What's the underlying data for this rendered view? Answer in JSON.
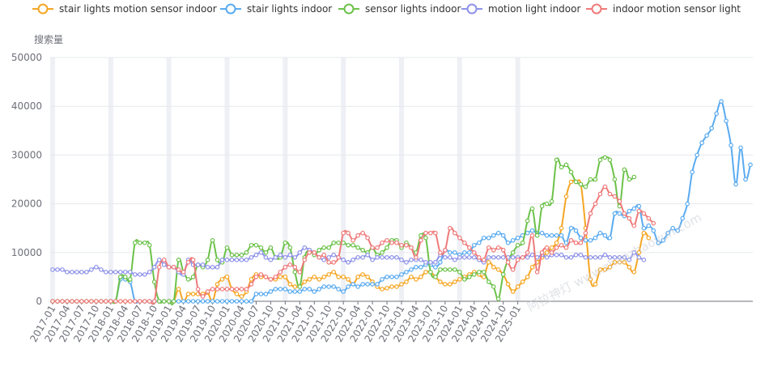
{
  "chart_data": {
    "type": "line",
    "title": "",
    "ylabel": "搜索量",
    "xlabel": "",
    "ylim": [
      0,
      50000
    ],
    "y_ticks": [
      "0",
      "10000",
      "20000",
      "30000",
      "40000",
      "50000"
    ],
    "x_start": "2017-01",
    "x_tick_labels": [
      "2017-01",
      "2017-04",
      "2017-07",
      "2017-10",
      "2018-01",
      "2018-04",
      "2018-07",
      "2018-10",
      "2019-01",
      "2019-04",
      "2019-07",
      "2019-10",
      "2020-01",
      "2020-04",
      "2020-07",
      "2020-10",
      "2021-01",
      "2021-04",
      "2021-07",
      "2021-10",
      "2022-01",
      "2022-04",
      "2022-07",
      "2022-10",
      "2023-01",
      "2023-04",
      "2023-07",
      "2023-10",
      "2024-01",
      "2024-04",
      "2024-07",
      "2024-10",
      "2025-01"
    ],
    "legend_position": "top",
    "grid": true,
    "highlight_months": [
      "2017-01",
      "2018-01",
      "2019-01",
      "2020-01",
      "2021-01",
      "2022-01",
      "2023-01",
      "2024-01",
      "2025-01"
    ],
    "watermark": "阿拉神灯 www.zhaozhaoyun.com",
    "series": [
      {
        "name": "stair lights motion sensor indoor",
        "color": "#f5a623",
        "values": [
          0,
          0,
          0,
          0,
          0,
          0,
          0,
          0,
          0,
          0,
          0,
          0,
          0,
          0,
          0,
          0,
          0,
          0,
          0,
          0,
          0,
          0,
          0,
          0,
          0,
          0,
          2500,
          0,
          1500,
          1500,
          1500,
          1500,
          1800,
          0,
          3500,
          4500,
          5000,
          2500,
          1500,
          1000,
          2000,
          4500,
          5500,
          5000,
          5000,
          4500,
          4500,
          5000,
          5000,
          3500,
          3000,
          3000,
          4000,
          4500,
          5000,
          4500,
          5000,
          5500,
          6000,
          5000,
          5000,
          4500,
          3500,
          5000,
          5500,
          5000,
          4000,
          3000,
          2500,
          2700,
          3000,
          3000,
          3500,
          4000,
          5000,
          4500,
          5000,
          6000,
          6000,
          5000,
          4000,
          3500,
          3500,
          4000,
          4500,
          5000,
          5500,
          6000,
          5500,
          5000,
          8000,
          7000,
          6500,
          5500,
          3500,
          2000,
          3000,
          4000,
          5000,
          7000,
          8000,
          9000,
          10000,
          11000,
          12000,
          15000,
          21500,
          24500,
          24500,
          24000,
          15000,
          4500,
          3500,
          6500,
          6500,
          7000,
          8000,
          8000,
          8000,
          7000,
          6000,
          10000,
          14000,
          13000
        ]
      },
      {
        "name": "stair lights indoor",
        "color": "#5aabf0",
        "values": [
          0,
          0,
          0,
          0,
          0,
          0,
          0,
          0,
          0,
          0,
          0,
          0,
          0,
          0,
          4500,
          4500,
          4000,
          0,
          0,
          0,
          0,
          0,
          0,
          0,
          0,
          0,
          0,
          0,
          0,
          0,
          0,
          0,
          0,
          0,
          0,
          0,
          0,
          0,
          0,
          0,
          0,
          0,
          1500,
          1500,
          1500,
          2000,
          2500,
          2500,
          2500,
          2000,
          2000,
          2000,
          2500,
          2500,
          2000,
          2500,
          3000,
          3000,
          3000,
          2500,
          2000,
          3000,
          3500,
          3000,
          3500,
          3500,
          3500,
          3500,
          4500,
          5000,
          5000,
          5000,
          5500,
          6000,
          6500,
          7000,
          7000,
          7500,
          7500,
          7000,
          8000,
          10500,
          10000,
          10000,
          9500,
          10000,
          10000,
          11500,
          12000,
          13000,
          13000,
          13500,
          14000,
          13500,
          12000,
          12500,
          13000,
          13500,
          14000,
          14500,
          14000,
          14000,
          13500,
          13500,
          13500,
          13500,
          12000,
          15000,
          14500,
          13000,
          12500,
          12500,
          13000,
          14000,
          13500,
          13000,
          18000,
          18000,
          17500,
          18500,
          19000,
          19500,
          15000,
          15500,
          14500,
          12000,
          12500,
          14000,
          15000,
          14500,
          17000,
          20000,
          26500,
          30000,
          32500,
          34000,
          35500,
          38500,
          41000,
          37000,
          32000,
          24000,
          31500,
          25000,
          28000
        ]
      },
      {
        "name": "sensor lights indoor",
        "color": "#6cc24a",
        "values": [
          0,
          0,
          0,
          0,
          0,
          0,
          0,
          0,
          0,
          0,
          0,
          0,
          0,
          0,
          5000,
          5000,
          4500,
          12000,
          12000,
          12000,
          11500,
          4000,
          0,
          0,
          0,
          0,
          8500,
          6000,
          4500,
          5000,
          7500,
          7000,
          8500,
          12500,
          8500,
          8000,
          11000,
          9500,
          9500,
          9500,
          10000,
          11500,
          11500,
          11000,
          10000,
          11000,
          9000,
          9000,
          12000,
          11000,
          6000,
          3000,
          9000,
          10500,
          9500,
          10500,
          11000,
          11000,
          12000,
          12000,
          12000,
          11500,
          11500,
          11000,
          10500,
          10000,
          11000,
          9500,
          10000,
          11000,
          12500,
          12500,
          11000,
          12000,
          11000,
          10000,
          13500,
          13000,
          6000,
          5000,
          6500,
          6500,
          6500,
          6500,
          6000,
          4500,
          5000,
          5500,
          6000,
          6000,
          4000,
          3000,
          500,
          5500,
          8500,
          10000,
          11500,
          12000,
          16500,
          19000,
          13500,
          19500,
          20000,
          20500,
          29000,
          27500,
          28000,
          26500,
          24500,
          24000,
          23500,
          25000,
          25000,
          29000,
          29500,
          29000,
          25000,
          19500,
          27000,
          25000,
          25500
        ]
      },
      {
        "name": "motion light indoor",
        "color": "#8e92e8",
        "values": [
          6500,
          6500,
          6500,
          6000,
          6000,
          6000,
          6000,
          6000,
          6500,
          7000,
          6500,
          6000,
          6000,
          6000,
          6000,
          6000,
          6000,
          5500,
          5500,
          5500,
          6000,
          7000,
          8500,
          7500,
          7000,
          7000,
          6000,
          5500,
          8500,
          7500,
          7500,
          7500,
          7000,
          7000,
          7000,
          8500,
          8500,
          8500,
          8500,
          8500,
          8500,
          9000,
          9500,
          10000,
          9000,
          8500,
          9000,
          9500,
          9000,
          9500,
          9000,
          10000,
          11000,
          10500,
          10000,
          9000,
          8500,
          9000,
          9500,
          9000,
          8500,
          8000,
          8500,
          9000,
          9000,
          9500,
          8500,
          9000,
          9000,
          9000,
          9000,
          9000,
          8500,
          8000,
          8500,
          8500,
          8500,
          8000,
          8000,
          8000,
          9500,
          9000,
          9000,
          8500,
          9000,
          9000,
          9000,
          9000,
          8500,
          8000,
          9000,
          9000,
          9000,
          9000,
          9000,
          9000,
          9000,
          9000,
          9000,
          9500,
          9000,
          9500,
          9000,
          9500,
          9500,
          9500,
          9000,
          9000,
          9500,
          9500,
          9000,
          9000,
          9000,
          9000,
          9500,
          9000,
          9000,
          9000,
          9000,
          8500,
          10000,
          9000,
          8500
        ]
      },
      {
        "name": "indoor motion sensor light",
        "color": "#ef7a7a",
        "values": [
          0,
          0,
          0,
          0,
          0,
          0,
          0,
          0,
          0,
          0,
          0,
          0,
          0,
          0,
          0,
          0,
          0,
          0,
          0,
          0,
          0,
          0,
          7000,
          8500,
          7000,
          7000,
          6500,
          6000,
          8000,
          8500,
          2500,
          1000,
          2000,
          2500,
          2500,
          2500,
          2500,
          2500,
          2500,
          2500,
          2500,
          3500,
          5000,
          5500,
          5000,
          4500,
          5000,
          6000,
          7000,
          7500,
          7000,
          6000,
          8500,
          10000,
          10000,
          9000,
          9500,
          8000,
          8000,
          9000,
          14000,
          14000,
          12500,
          13500,
          14000,
          13000,
          11000,
          11000,
          12000,
          12500,
          12000,
          12000,
          11500,
          11500,
          11000,
          9000,
          12500,
          14000,
          14000,
          14000,
          10000,
          10500,
          15000,
          14000,
          13000,
          12000,
          11000,
          10000,
          9000,
          8500,
          11000,
          10500,
          11000,
          10500,
          8000,
          6500,
          8500,
          9000,
          10000,
          13500,
          6000,
          10000,
          11000,
          10000,
          11000,
          11500,
          11000,
          12500,
          12000,
          12000,
          14000,
          18000,
          20000,
          22000,
          23500,
          22000,
          21500,
          20500,
          18000,
          17000,
          15500,
          18500,
          18000,
          17000,
          16000
        ]
      }
    ]
  }
}
